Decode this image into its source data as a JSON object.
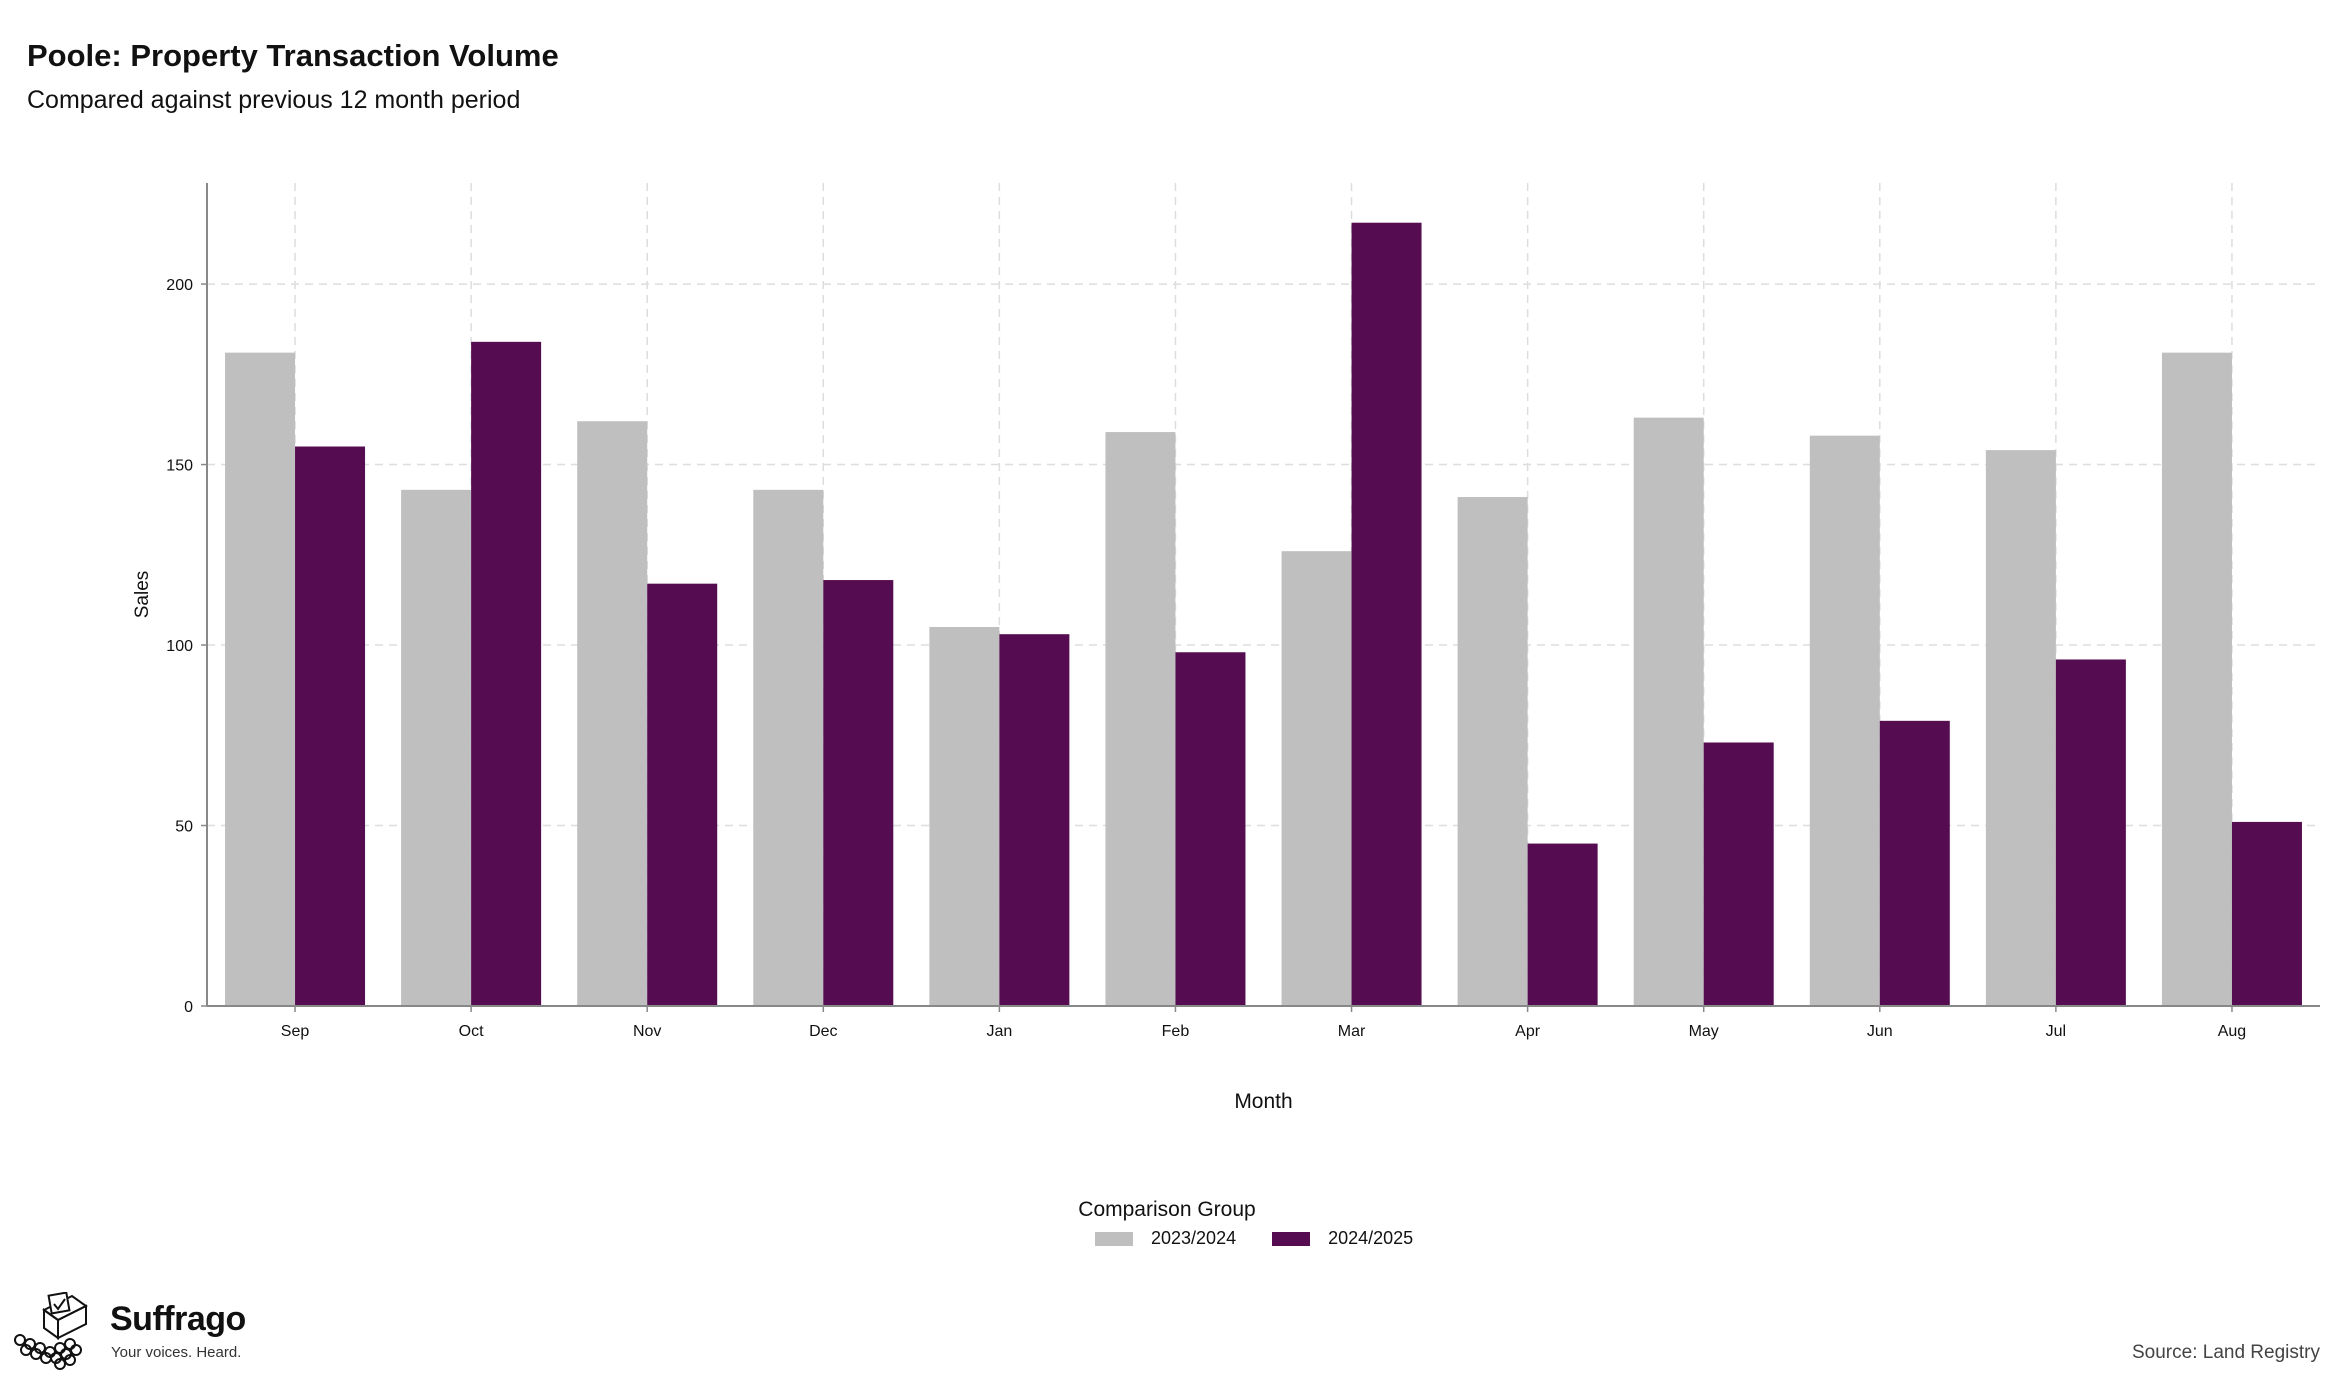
{
  "header": {
    "title": "Poole: Property Transaction Volume",
    "subtitle": "Compared against previous 12 month period"
  },
  "legend": {
    "title": "Comparison Group",
    "items": [
      {
        "label": "2023/2024",
        "color": "#bfbfbf"
      },
      {
        "label": "2024/2025",
        "color": "#560c51"
      }
    ]
  },
  "footer": {
    "brand": "Suffrago",
    "tagline": "Your voices. Heard.",
    "source": "Source: Land Registry",
    "logo_icon": "ballot-box-icon"
  },
  "chart_data": {
    "type": "bar",
    "xlabel": "Month",
    "ylabel": "Sales",
    "ylim": [
      0,
      228
    ],
    "yticks": [
      0,
      50,
      100,
      150,
      200
    ],
    "grid": true,
    "legend_position": "bottom",
    "categories": [
      "Sep",
      "Oct",
      "Nov",
      "Dec",
      "Jan",
      "Feb",
      "Mar",
      "Apr",
      "May",
      "Jun",
      "Jul",
      "Aug"
    ],
    "series": [
      {
        "name": "2023/2024",
        "color": "#bfbfbf",
        "values": [
          181,
          143,
          162,
          143,
          105,
          159,
          126,
          141,
          163,
          158,
          154,
          181
        ]
      },
      {
        "name": "2024/2025",
        "color": "#560c51",
        "values": [
          155,
          184,
          117,
          118,
          103,
          98,
          217,
          45,
          73,
          79,
          96,
          51
        ]
      }
    ]
  }
}
